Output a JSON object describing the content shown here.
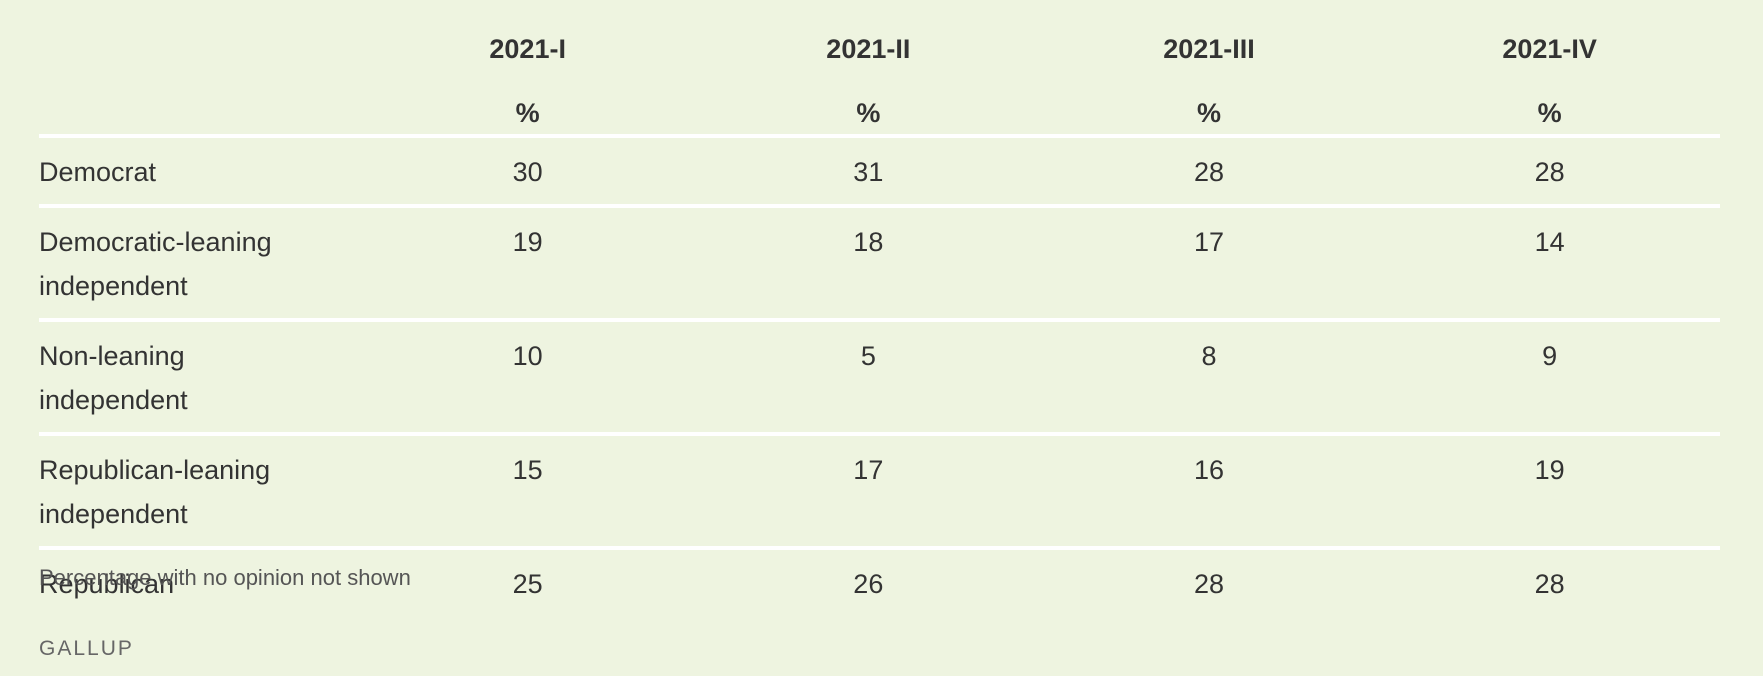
{
  "chart_data": {
    "type": "table",
    "columns": [
      "2021-I",
      "2021-II",
      "2021-III",
      "2021-IV"
    ],
    "unit_row": [
      "%",
      "%",
      "%",
      "%"
    ],
    "rows": [
      {
        "label": "Democrat",
        "values": [
          "30",
          "31",
          "28",
          "28"
        ]
      },
      {
        "label": "Democratic-leaning independent",
        "values": [
          "19",
          "18",
          "17",
          "14"
        ]
      },
      {
        "label": "Non-leaning independent",
        "values": [
          "10",
          "5",
          "8",
          "9"
        ]
      },
      {
        "label": "Republican-leaning independent",
        "values": [
          "15",
          "17",
          "16",
          "19"
        ]
      },
      {
        "label": "Republican",
        "values": [
          "25",
          "26",
          "28",
          "28"
        ]
      }
    ],
    "note": "Percentage with no opinion not shown",
    "source": "GALLUP"
  },
  "colors": {
    "background": "#eef4e0",
    "text": "#333333",
    "rule": "#ffffff"
  }
}
